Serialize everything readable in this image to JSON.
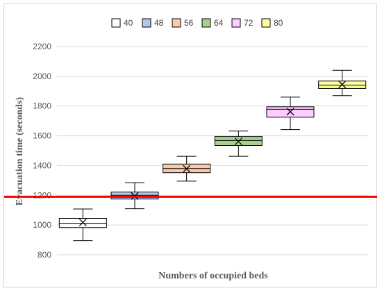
{
  "chart_data": {
    "type": "box",
    "title": "",
    "xlabel": "Numbers of occupied beds",
    "ylabel": "Evacuation time (seconds)",
    "ylim": [
      800,
      2200
    ],
    "yticks": [
      800,
      1000,
      1200,
      1400,
      1600,
      1800,
      2000,
      2200
    ],
    "grid": "horizontal",
    "legend_position": "top",
    "threshold_line": {
      "value": 1190,
      "color": "#ff0000"
    },
    "series": [
      {
        "name": "40",
        "color": "#ffffff",
        "min": 895,
        "q1": 983,
        "median": 1012,
        "q3": 1045,
        "max": 1108,
        "mean": 1018
      },
      {
        "name": "48",
        "color": "#b4c7e7",
        "min": 1110,
        "q1": 1175,
        "median": 1200,
        "q3": 1222,
        "max": 1285,
        "mean": 1195
      },
      {
        "name": "56",
        "color": "#f8cbad",
        "min": 1295,
        "q1": 1352,
        "median": 1380,
        "q3": 1410,
        "max": 1462,
        "mean": 1378
      },
      {
        "name": "64",
        "color": "#a9d18e",
        "min": 1462,
        "q1": 1535,
        "median": 1568,
        "q3": 1595,
        "max": 1632,
        "mean": 1562
      },
      {
        "name": "72",
        "color": "#ffccff",
        "min": 1642,
        "q1": 1725,
        "median": 1778,
        "q3": 1795,
        "max": 1860,
        "mean": 1762
      },
      {
        "name": "80",
        "color": "#ffff99",
        "min": 1870,
        "q1": 1918,
        "median": 1940,
        "q3": 1968,
        "max": 2040,
        "mean": 1945
      }
    ]
  }
}
